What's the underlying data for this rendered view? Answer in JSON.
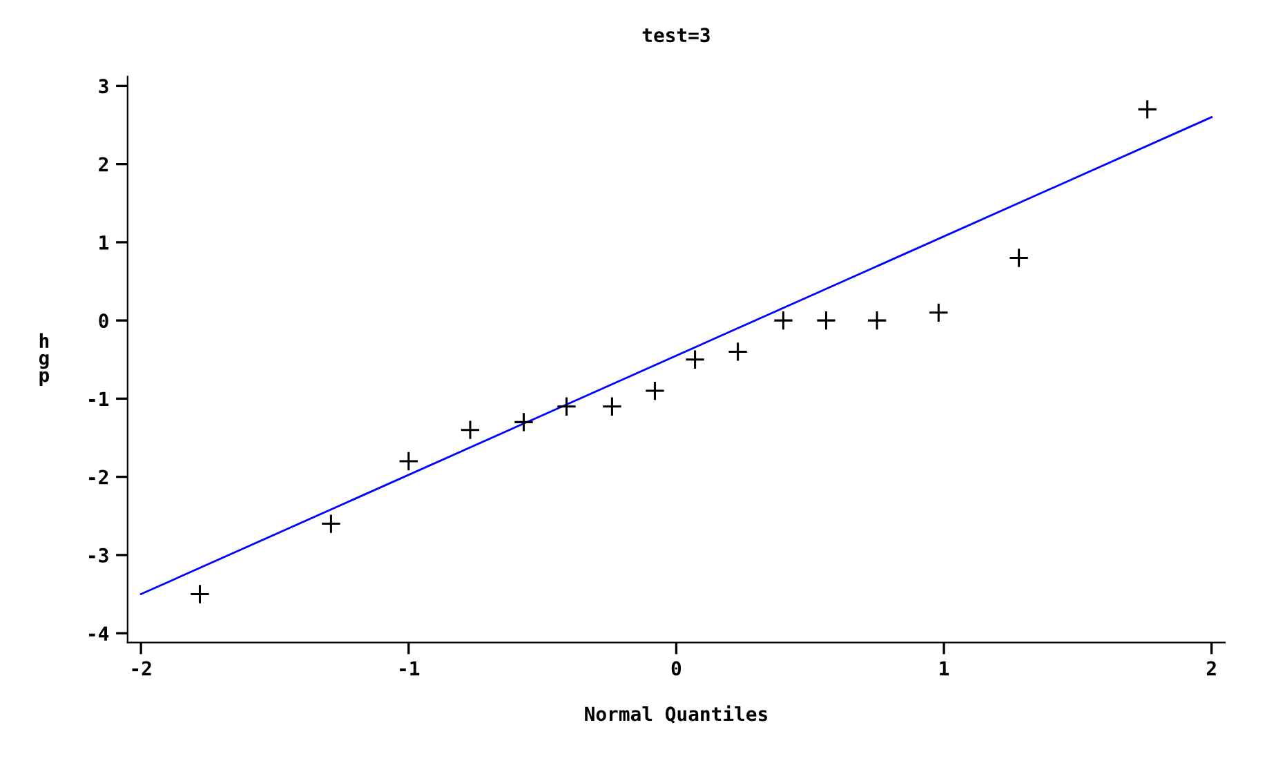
{
  "chart_data": {
    "type": "scatter",
    "title": "test=3",
    "xlabel": "Normal Quantiles",
    "ylabel": "hgp",
    "xlim": [
      -2.05,
      2.05
    ],
    "ylim": [
      -4.12,
      3.12
    ],
    "xticks": [
      -2,
      -1,
      0,
      1,
      2
    ],
    "yticks": [
      -4,
      -3,
      -2,
      -1,
      0,
      1,
      2,
      3
    ],
    "grid": false,
    "legend": false,
    "series": [
      {
        "color": "#000000",
        "marker": "cross",
        "x": [
          -1.78,
          -1.29,
          -1.0,
          -0.77,
          -0.57,
          -0.41,
          -0.24,
          -0.08,
          0.07,
          0.23,
          0.4,
          0.56,
          0.75,
          0.98,
          1.28,
          1.76
        ],
        "values": [
          -3.5,
          -2.6,
          -1.8,
          -1.4,
          -1.3,
          -1.1,
          -1.1,
          -0.9,
          -0.5,
          -0.4,
          0,
          0,
          0,
          0.1,
          0.8,
          2.7
        ]
      },
      {
        "type": "line",
        "color": "#0000ff",
        "marker": "none",
        "line_style": "solid",
        "x": [
          -2,
          2
        ],
        "values": [
          -3.5,
          2.6
        ]
      }
    ]
  }
}
